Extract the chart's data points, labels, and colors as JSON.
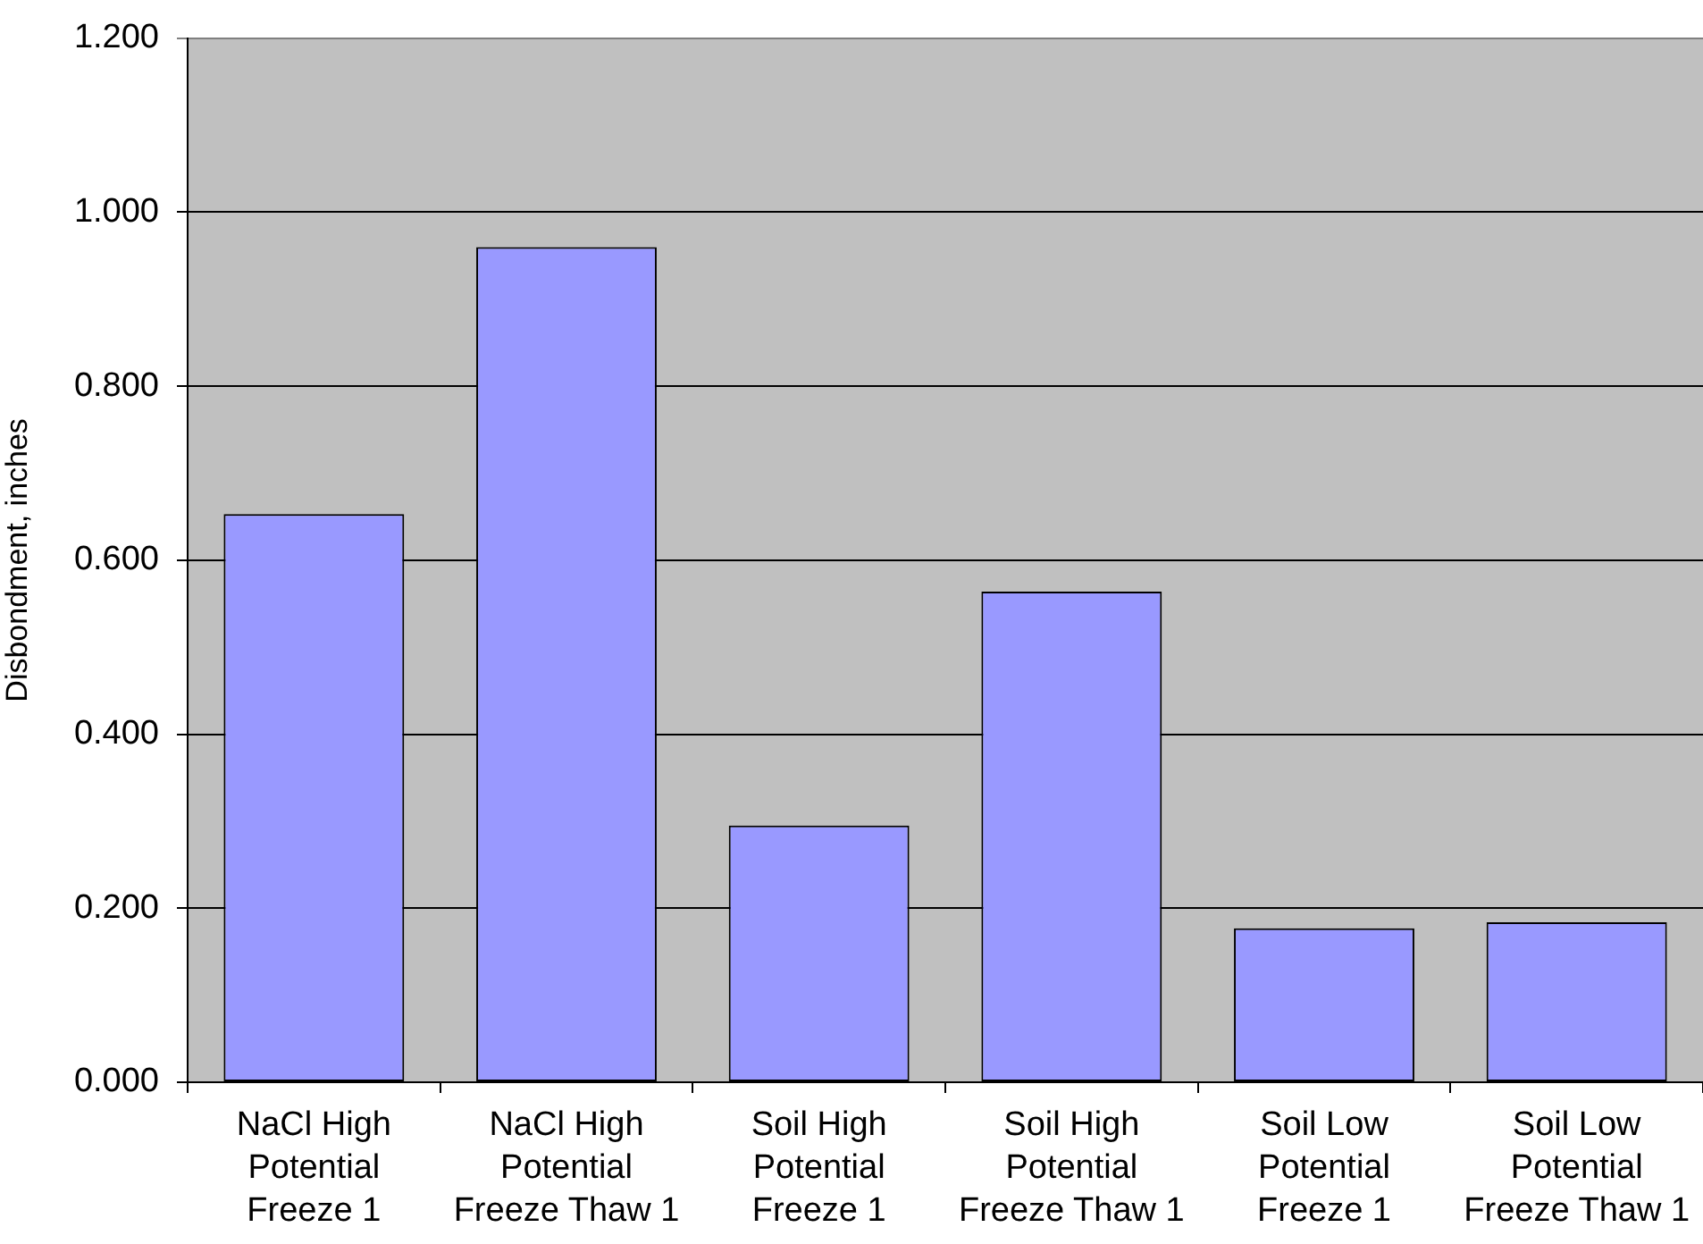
{
  "chart_data": {
    "type": "bar",
    "ylabel": "Disbondment, inches",
    "categories": [
      "NaCl High Potential Freeze 1",
      "NaCl High Potential Freeze Thaw 1",
      "Soil High Potential Freeze 1",
      "Soil High Potential Freeze Thaw 1",
      "Soil Low Potential Freeze 1",
      "Soil Low Potential Freeze Thaw 1"
    ],
    "values": [
      0.653,
      0.96,
      0.295,
      0.564,
      0.177,
      0.184
    ],
    "color": "#9999ff",
    "ylim": [
      0,
      1.2
    ],
    "yticks": [
      {
        "value": 0,
        "label": "0.000"
      },
      {
        "value": 0.2,
        "label": "0.200"
      },
      {
        "value": 0.4,
        "label": "0.400"
      },
      {
        "value": 0.6,
        "label": "0.600"
      },
      {
        "value": 0.8,
        "label": "0.800"
      },
      {
        "value": 1,
        "label": "1.000"
      },
      {
        "value": 1.2,
        "label": "1.200"
      }
    ],
    "grid": "y"
  }
}
